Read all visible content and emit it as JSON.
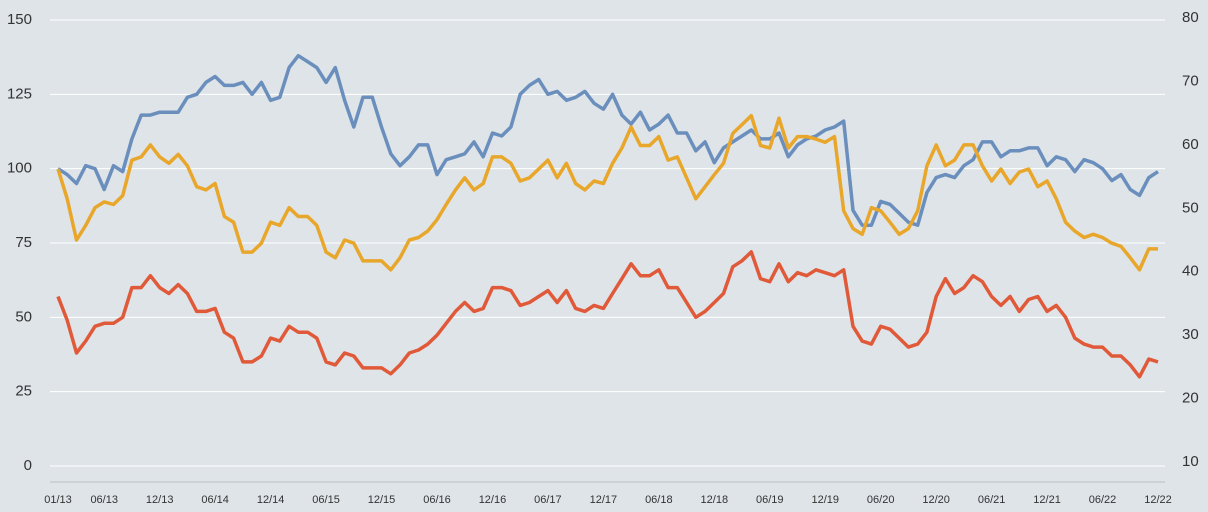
{
  "chart_data": {
    "type": "line",
    "categories": [
      "01/13",
      null,
      null,
      null,
      null,
      "06/13",
      null,
      null,
      null,
      null,
      null,
      "12/13",
      null,
      null,
      null,
      null,
      null,
      "06/14",
      null,
      null,
      null,
      null,
      null,
      "12/14",
      null,
      null,
      null,
      null,
      null,
      "06/15",
      null,
      null,
      null,
      null,
      null,
      "12/15",
      null,
      null,
      null,
      null,
      null,
      "06/16",
      null,
      null,
      null,
      null,
      null,
      "12/16",
      null,
      null,
      null,
      null,
      null,
      "06/17",
      null,
      null,
      null,
      null,
      null,
      "12/17",
      null,
      null,
      null,
      null,
      null,
      "06/18",
      null,
      null,
      null,
      null,
      null,
      "12/18",
      null,
      null,
      null,
      null,
      null,
      "06/19",
      null,
      null,
      null,
      null,
      null,
      "12/19",
      null,
      null,
      null,
      null,
      null,
      "06/20",
      null,
      null,
      null,
      null,
      null,
      "12/20",
      null,
      null,
      null,
      null,
      null,
      "06/21",
      null,
      null,
      null,
      null,
      null,
      "12/21",
      null,
      null,
      null,
      null,
      null,
      "06/22",
      null,
      null,
      null,
      null,
      null,
      "12/22"
    ],
    "series": [
      {
        "color": "#6b8fbd",
        "axis": "y",
        "values": [
          100,
          98,
          95,
          101,
          100,
          93,
          101,
          99,
          110,
          118,
          118,
          119,
          119,
          119,
          124,
          125,
          129,
          131,
          128,
          128,
          129,
          125,
          129,
          123,
          124,
          134,
          138,
          136,
          134,
          129,
          134,
          123,
          114,
          124,
          124,
          114,
          105,
          101,
          104,
          108,
          108,
          98,
          103,
          104,
          105,
          109,
          104,
          112,
          111,
          114,
          125,
          128,
          130,
          125,
          126,
          123,
          124,
          126,
          122,
          120,
          125,
          118,
          115,
          119,
          113,
          115,
          118,
          112,
          112,
          106,
          109,
          102,
          107,
          109,
          111,
          113,
          110,
          110,
          112,
          104,
          108,
          110,
          111,
          113,
          114,
          116,
          86,
          81,
          81,
          89,
          88,
          85,
          82,
          81,
          92,
          97,
          98,
          97,
          101,
          103,
          109,
          109,
          104,
          106,
          106,
          107,
          107,
          101,
          104,
          103,
          99,
          103,
          102,
          100,
          96,
          98,
          93,
          91,
          97,
          99
        ]
      },
      {
        "color": "#e8a72b",
        "axis": "y2",
        "values": [
          56.2,
          51.5,
          45,
          47.3,
          50.1,
          51,
          50.6,
          52,
          57.6,
          58.1,
          60,
          58.1,
          57.1,
          58.5,
          56.7,
          53.4,
          52.9,
          53.9,
          48.7,
          47.8,
          43.1,
          43.1,
          44.5,
          47.8,
          47.3,
          50.1,
          48.7,
          48.7,
          47.3,
          43.1,
          42.2,
          45,
          44.5,
          41.7,
          41.7,
          41.7,
          40.3,
          42.2,
          45,
          45.4,
          46.4,
          48.2,
          50.6,
          52.9,
          54.8,
          52.9,
          53.9,
          58.1,
          58.1,
          57.1,
          54.3,
          54.8,
          56.2,
          57.6,
          54.8,
          57.1,
          53.9,
          52.9,
          54.3,
          53.9,
          57.1,
          59.5,
          62.8,
          59.9,
          59.9,
          61.3,
          57.6,
          58.1,
          54.8,
          51.5,
          53.4,
          55.3,
          57.1,
          61.8,
          63.2,
          64.6,
          59.9,
          59.5,
          64.2,
          59.5,
          61.3,
          61.3,
          60.9,
          60.4,
          61.3,
          49.6,
          46.8,
          45.9,
          50.1,
          49.6,
          47.8,
          45.9,
          46.8,
          49.6,
          56.7,
          60,
          56.7,
          57.6,
          60,
          60,
          56.7,
          54.3,
          56.2,
          53.9,
          55.7,
          56.2,
          53.4,
          54.3,
          51.5,
          47.8,
          46.4,
          45.4,
          45.9,
          45.4,
          44.5,
          44,
          42.2,
          40.3,
          43.6,
          43.6
        ]
      },
      {
        "color": "#e05a3a",
        "axis": "y",
        "values": [
          57,
          49,
          38,
          42,
          47,
          48,
          48,
          50,
          60,
          60,
          64,
          60,
          58,
          61,
          58,
          52,
          52,
          53,
          45,
          43,
          35,
          35,
          37,
          43,
          42,
          47,
          45,
          45,
          43,
          35,
          34,
          38,
          37,
          33,
          33,
          33,
          31,
          34,
          38,
          39,
          41,
          44,
          48,
          52,
          55,
          52,
          53,
          60,
          60,
          59,
          54,
          55,
          57,
          59,
          55,
          59,
          53,
          52,
          54,
          53,
          58,
          63,
          68,
          64,
          64,
          66,
          60,
          60,
          55,
          50,
          52,
          55,
          58,
          67,
          69,
          72,
          63,
          62,
          68,
          62,
          65,
          64,
          66,
          65,
          64,
          66,
          47,
          42,
          41,
          47,
          46,
          43,
          40,
          41,
          45,
          57,
          63,
          58,
          60,
          64,
          62,
          57,
          54,
          57,
          52,
          56,
          57,
          52,
          54,
          50,
          43,
          41,
          40,
          40,
          37,
          37,
          34,
          30,
          36,
          35
        ]
      }
    ],
    "ylim": [
      0,
      150
    ],
    "yticks": [
      0,
      25,
      50,
      75,
      100,
      125,
      150
    ],
    "y2lim": [
      10,
      80
    ],
    "y2ticks": [
      10,
      20,
      30,
      40,
      50,
      60,
      70,
      80
    ],
    "grid": true
  }
}
